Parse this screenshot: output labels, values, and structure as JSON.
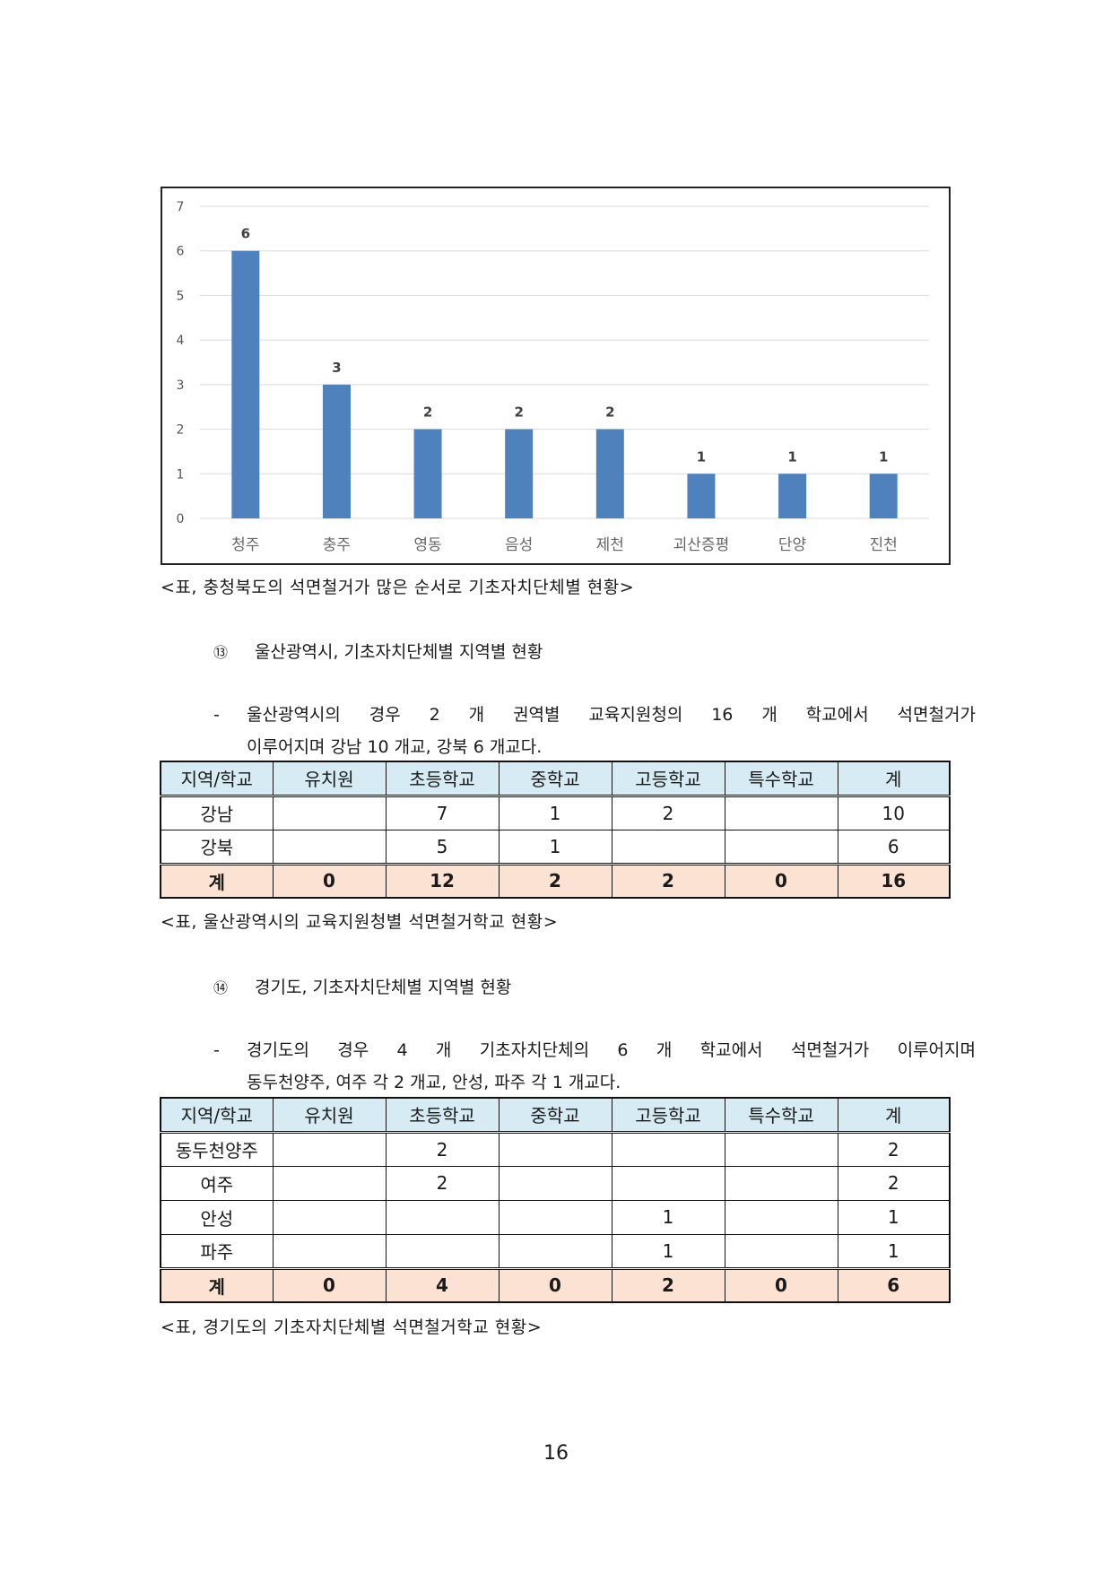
{
  "chart_data": {
    "type": "bar",
    "categories": [
      "청주",
      "충주",
      "영동",
      "음성",
      "제천",
      "괴산증평",
      "단양",
      "진천"
    ],
    "values": [
      6,
      3,
      2,
      2,
      2,
      1,
      1,
      1
    ],
    "ylim": [
      0,
      7
    ],
    "yticks": [
      "0",
      "1",
      "2",
      "3",
      "4",
      "5",
      "6",
      "7"
    ],
    "grid": true,
    "bar_color": "#4f81bd",
    "grid_color": "#d9d9d9",
    "data_labels": [
      "6",
      "3",
      "2",
      "2",
      "2",
      "1",
      "1",
      "1"
    ]
  },
  "chart_caption": "<표, 충청북도의 석면철거가 많은 순서로 기초자치단체별 현황>",
  "section13": {
    "number": "⑬",
    "title": "울산광역시, 기초자치단체별 지역별 현황",
    "dash": "-",
    "line1_words": [
      "울산광역시의",
      "경우",
      "2",
      "개",
      "권역별",
      "교육지원청의",
      "16",
      "개",
      "학교에서",
      "석면철거가"
    ],
    "line2": "이루어지며 강남 10 개교, 강북 6 개교다.",
    "table": {
      "header": [
        "지역/학교",
        "유치원",
        "초등학교",
        "중학교",
        "고등학교",
        "특수학교",
        "계"
      ],
      "rows": [
        [
          "강남",
          "",
          "7",
          "1",
          "2",
          "",
          "10"
        ],
        [
          "강북",
          "",
          "5",
          "1",
          "",
          "",
          "6"
        ]
      ],
      "total": [
        "계",
        "0",
        "12",
        "2",
        "2",
        "0",
        "16"
      ]
    },
    "caption": "<표, 울산광역시의 교육지원청별 석면철거학교 현황>"
  },
  "section14": {
    "number": "⑭",
    "title": "경기도, 기초자치단체별 지역별 현황",
    "dash": "-",
    "line1_words": [
      "경기도의",
      "경우",
      "4",
      "개",
      "기초자치단체의",
      "6",
      "개",
      "학교에서",
      "석면철거가",
      "이루어지며"
    ],
    "line2": "동두천양주, 여주 각 2 개교, 안성, 파주 각 1 개교다.",
    "table": {
      "header": [
        "지역/학교",
        "유치원",
        "초등학교",
        "중학교",
        "고등학교",
        "특수학교",
        "계"
      ],
      "rows": [
        [
          "동두천양주",
          "",
          "2",
          "",
          "",
          "",
          "2"
        ],
        [
          "여주",
          "",
          "2",
          "",
          "",
          "",
          "2"
        ],
        [
          "안성",
          "",
          "",
          "",
          "1",
          "",
          "1"
        ],
        [
          "파주",
          "",
          "",
          "",
          "1",
          "",
          "1"
        ]
      ],
      "total": [
        "계",
        "0",
        "4",
        "0",
        "2",
        "0",
        "6"
      ]
    },
    "caption": "<표, 경기도의 기초자치단체별 석면철거학교 현황>"
  },
  "page_number": "16"
}
